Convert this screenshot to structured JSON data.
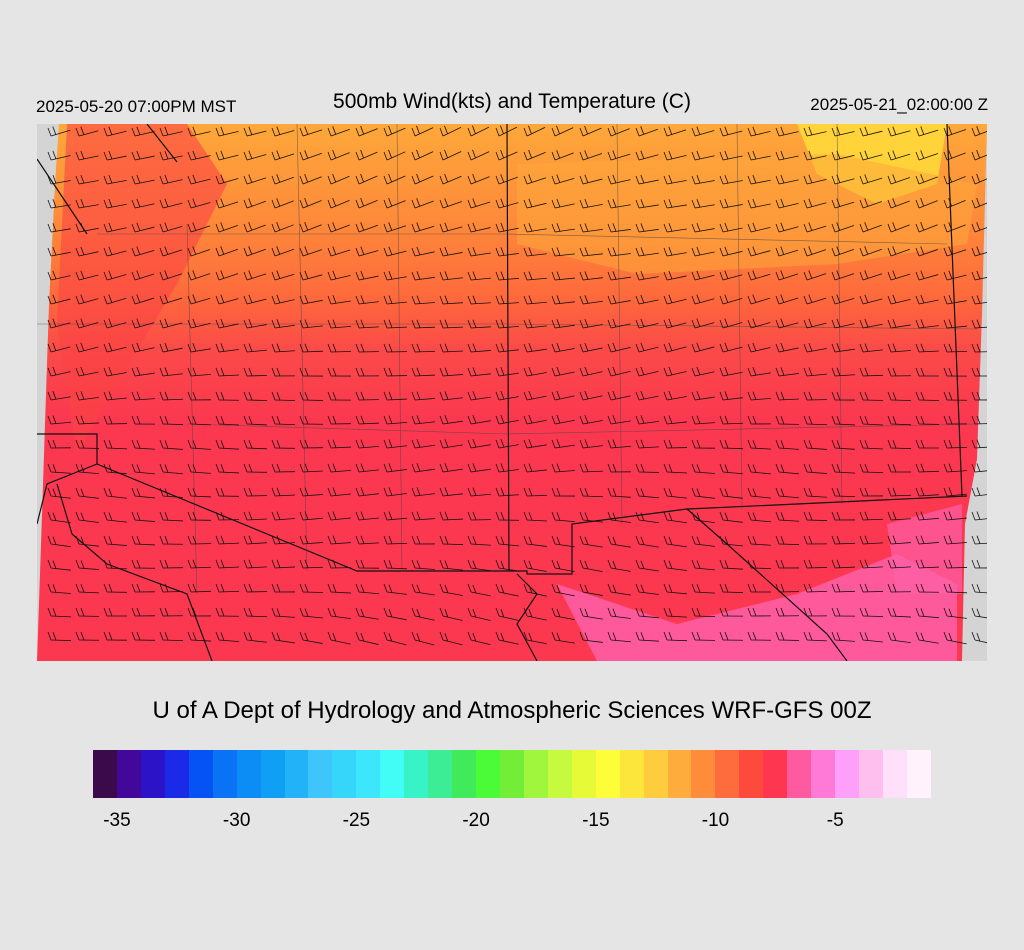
{
  "header": {
    "valid_time": "2025-05-20 07:00PM MST",
    "title": "500mb Wind(kts) and Temperature (C)",
    "utc_time": "2025-05-21_02:00:00 Z"
  },
  "footer": {
    "credit": "U of A Dept of Hydrology and Atmospheric Sciences WRF-GFS 00Z"
  },
  "colorbar": {
    "colors": [
      "#3a0a4a",
      "#41089a",
      "#2d13c7",
      "#1a2ae6",
      "#0552f5",
      "#0a72f5",
      "#0c8df5",
      "#0fa0f5",
      "#22b2f7",
      "#3ec6fa",
      "#36d5fa",
      "#3de6fd",
      "#42fcf6",
      "#38f2c8",
      "#3ded96",
      "#40ea5a",
      "#4bfb38",
      "#72ed38",
      "#a0f63c",
      "#c6fa3e",
      "#e6fa38",
      "#fdfd3a",
      "#fde63c",
      "#fecc3c",
      "#fead3c",
      "#fe8c3a",
      "#fe6b3c",
      "#fe4a3c",
      "#fe3650",
      "#fe5aa0",
      "#fe7ad6",
      "#fea0fa",
      "#febeee",
      "#fee0fa",
      "#fff2fc"
    ],
    "ticks": [
      "-35",
      "-30",
      "-25",
      "-20",
      "-15",
      "-10",
      "-5"
    ],
    "tick_values": [
      -35,
      -30,
      -25,
      -20,
      -15,
      -10,
      -5
    ],
    "min": -36,
    "max": -1
  },
  "map": {
    "field": "500mb temperature (C)",
    "warm_color": "#fb3850",
    "cool_color": "#fea83a",
    "cold_color": "#ffd83a",
    "pink_color": "#fe60a8"
  }
}
